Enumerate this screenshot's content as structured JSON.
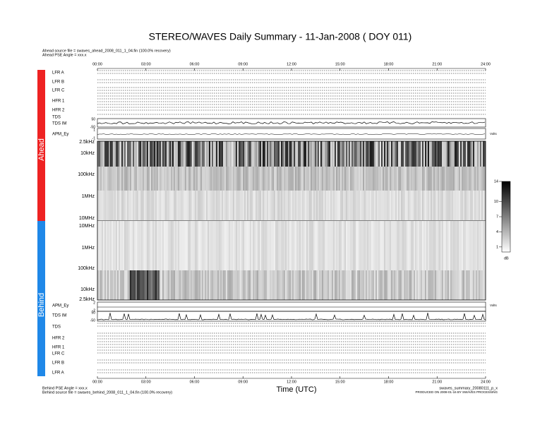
{
  "header": {
    "title": "STEREO/WAVES Daily Summary - 11-Jan-2008 ( DOY 011)",
    "ahead_source": "Ahead source file = swaves_ahead_2008_011_1_04.fin (100.0% recovery)",
    "ahead_pse": "Ahead PSE Angle = xxx.x",
    "behind_pse": "Behind PSE Angle = xxx.x",
    "behind_source": "Behind source file = swaves_behind_2008_011_1_04.fin (100.0% recovery)",
    "file_name": "swaves_summary_20080111_p_x",
    "produced": "PRODUCED ON 2008-01-16 BY SWAVES PROCESSING"
  },
  "time_axis": {
    "ticks": [
      "00:00",
      "03:00",
      "06:00",
      "09:00",
      "12:00",
      "15:00",
      "18:00",
      "21:00",
      "24:00"
    ],
    "label": "Time (UTC)"
  },
  "side_labels": {
    "ahead": "Ahead",
    "behind": "Behind"
  },
  "ahead_rows": [
    "LFR A",
    "LFR B",
    "LFR C",
    "HFR 1",
    "HFR 2",
    "TDS",
    "TDS IM",
    "APM_Ey"
  ],
  "behind_rows": [
    "APM_Ey",
    "TDS IM",
    "TDS",
    "HFR 2",
    "HFR 1",
    "LFR C",
    "LFR B",
    "LFR A"
  ],
  "ahead_freq": [
    "2.5kHz",
    "10kHz",
    "100kHz",
    "1MHz",
    "10MHz"
  ],
  "behind_freq": [
    "10MHz",
    "1MHz",
    "100kHz",
    "10kHz",
    "2.5kHz"
  ],
  "ahead_scale": [
    "50",
    "-50",
    "1",
    "-1"
  ],
  "behind_scale": [
    "2",
    "-2",
    "50",
    "-50"
  ],
  "apm_unit": "Volts",
  "colorbar": {
    "lim": [
      0,
      14
    ],
    "ticks": [
      1,
      4,
      7,
      10,
      14
    ],
    "unit": "dB"
  }
}
